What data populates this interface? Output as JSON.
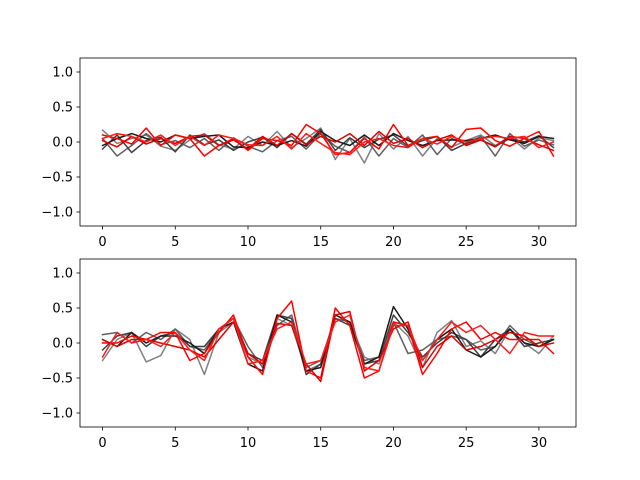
{
  "chart_data": [
    {
      "type": "line",
      "title": "",
      "xlabel": "",
      "ylabel": "",
      "xlim": [
        -1.55,
        32.55
      ],
      "ylim": [
        -1.2,
        1.2
      ],
      "x_ticks": [
        0,
        5,
        10,
        15,
        20,
        25,
        30
      ],
      "x_tick_labels": [
        "0",
        "5",
        "10",
        "15",
        "20",
        "25",
        "30"
      ],
      "y_ticks": [
        -1.0,
        -0.5,
        0.0,
        0.5,
        1.0
      ],
      "y_tick_labels": [
        "−1.0",
        "−0.5",
        "0.0",
        "0.5",
        "1.0"
      ],
      "grid": false,
      "legend": "none",
      "x": [
        0,
        1,
        2,
        3,
        4,
        5,
        6,
        7,
        8,
        9,
        10,
        11,
        12,
        13,
        14,
        15,
        16,
        17,
        18,
        19,
        20,
        21,
        22,
        23,
        24,
        25,
        26,
        27,
        28,
        29,
        30,
        31
      ],
      "series": [
        {
          "color": "#808080",
          "values": [
            0.17,
            -0.02,
            0.05,
            0.1,
            -0.06,
            -0.12,
            0.03,
            0.12,
            -0.04,
            -0.1,
            0.08,
            -0.05,
            0.15,
            -0.08,
            0.05,
            0.2,
            -0.25,
            0.05,
            -0.3,
            0.12,
            -0.1,
            0.08,
            -0.2,
            0.05,
            -0.07,
            0.02,
            0.1,
            -0.05,
            0.08,
            -0.1,
            0.06,
            0.02
          ]
        },
        {
          "color": "#606060",
          "values": [
            0.05,
            -0.2,
            -0.05,
            0.12,
            -0.04,
            0.02,
            -0.08,
            0.05,
            -0.12,
            0.06,
            -0.06,
            -0.14,
            0.02,
            0.08,
            -0.1,
            0.12,
            -0.06,
            -0.15,
            0.07,
            -0.2,
            0.05,
            -0.08,
            0.1,
            -0.18,
            0.05,
            -0.03,
            0.08,
            -0.2,
            0.12,
            -0.06,
            0.03,
            -0.04
          ]
        },
        {
          "color": "#404040",
          "values": [
            -0.1,
            0.1,
            -0.15,
            0.02,
            0.07,
            -0.14,
            0.1,
            -0.04,
            0.03,
            -0.12,
            0.0,
            0.07,
            -0.08,
            0.12,
            -0.03,
            0.18,
            -0.12,
            0.06,
            -0.08,
            0.04,
            0.1,
            -0.06,
            0.02,
            0.08,
            -0.12,
            -0.02,
            0.03,
            -0.06,
            0.05,
            0.0,
            0.09,
            -0.08
          ]
        },
        {
          "color": "#1a1a1a",
          "values": [
            -0.05,
            0.05,
            0.12,
            0.05,
            0.0,
            0.1,
            0.05,
            0.08,
            0.1,
            -0.07,
            -0.08,
            0.0,
            -0.05,
            0.02,
            -0.06,
            0.15,
            0.02,
            -0.05,
            0.1,
            -0.05,
            0.12,
            0.02,
            -0.05,
            0.02,
            0.03,
            0.02,
            0.05,
            0.1,
            0.03,
            -0.02,
            0.08,
            0.05
          ]
        },
        {
          "color": "#ff0000",
          "values": [
            0.1,
            0.05,
            -0.03,
            0.2,
            -0.05,
            0.1,
            0.05,
            -0.2,
            -0.05,
            0.05,
            -0.12,
            0.05,
            0.02,
            -0.05,
            0.25,
            0.12,
            -0.18,
            -0.15,
            0.05,
            -0.1,
            0.25,
            -0.05,
            0.05,
            0.08,
            -0.08,
            0.18,
            0.2,
            0.02,
            -0.06,
            0.05,
            0.15,
            -0.2
          ]
        },
        {
          "color": "#e00000",
          "values": [
            0.02,
            -0.07,
            0.08,
            -0.03,
            0.05,
            -0.02,
            0.08,
            0.1,
            -0.05,
            0.03,
            -0.1,
            0.08,
            -0.05,
            0.12,
            -0.04,
            0.08,
            0.0,
            0.12,
            -0.05,
            0.15,
            -0.02,
            0.05,
            -0.08,
            0.03,
            0.1,
            -0.05,
            0.03,
            -0.07,
            0.08,
            0.05,
            -0.04,
            -0.12
          ]
        },
        {
          "color": "#ff1a1a",
          "values": [
            0.05,
            0.12,
            0.08,
            0.0,
            0.1,
            -0.05,
            0.08,
            -0.05,
            0.1,
            0.05,
            -0.04,
            -0.05,
            0.08,
            -0.1,
            0.12,
            -0.02,
            -0.15,
            -0.18,
            0.0,
            0.05,
            -0.05,
            -0.08,
            0.05,
            -0.03,
            0.08,
            0.0,
            0.05,
            0.08,
            0.05,
            0.08,
            -0.08,
            0.0
          ]
        }
      ]
    },
    {
      "type": "line",
      "title": "",
      "xlabel": "",
      "ylabel": "",
      "xlim": [
        -1.55,
        32.55
      ],
      "ylim": [
        -1.2,
        1.2
      ],
      "x_ticks": [
        0,
        5,
        10,
        15,
        20,
        25,
        30
      ],
      "x_tick_labels": [
        "0",
        "5",
        "10",
        "15",
        "20",
        "25",
        "30"
      ],
      "y_ticks": [
        -1.0,
        -0.5,
        0.0,
        0.5,
        1.0
      ],
      "y_tick_labels": [
        "−1.0",
        "−0.5",
        "0.0",
        "0.5",
        "1.0"
      ],
      "grid": false,
      "legend": "none",
      "x": [
        0,
        1,
        2,
        3,
        4,
        5,
        6,
        7,
        8,
        9,
        10,
        11,
        12,
        13,
        14,
        15,
        16,
        17,
        18,
        19,
        20,
        21,
        22,
        23,
        24,
        25,
        26,
        27,
        28,
        29,
        30,
        31
      ],
      "series": [
        {
          "color": "#808080",
          "values": [
            -0.25,
            0.05,
            0.15,
            -0.27,
            -0.18,
            0.2,
            0.05,
            -0.45,
            0.15,
            0.3,
            -0.2,
            -0.3,
            0.35,
            0.25,
            -0.4,
            -0.3,
            0.4,
            0.3,
            -0.2,
            -0.3,
            0.3,
            0.1,
            -0.35,
            0.15,
            0.32,
            -0.05,
            0.03,
            -0.15,
            0.2,
            0.0,
            -0.15,
            0.1
          ]
        },
        {
          "color": "#606060",
          "values": [
            0.12,
            0.15,
            0.0,
            0.15,
            0.05,
            0.2,
            -0.05,
            -0.1,
            0.2,
            0.35,
            -0.05,
            -0.35,
            0.25,
            0.4,
            -0.35,
            -0.25,
            0.35,
            0.3,
            -0.25,
            -0.2,
            0.3,
            -0.15,
            -0.1,
            0.05,
            0.1,
            0.05,
            -0.1,
            -0.05,
            0.25,
            0.05,
            -0.05,
            0.05
          ]
        },
        {
          "color": "#404040",
          "values": [
            -0.1,
            0.1,
            0.15,
            -0.05,
            0.1,
            0.15,
            -0.05,
            -0.05,
            0.2,
            0.35,
            -0.15,
            -0.25,
            0.4,
            0.35,
            -0.45,
            -0.3,
            0.35,
            0.25,
            -0.3,
            -0.25,
            0.4,
            0.15,
            -0.2,
            0.0,
            0.15,
            0.05,
            -0.2,
            0.05,
            0.2,
            -0.05,
            0.0,
            0.05
          ]
        },
        {
          "color": "#1a1a1a",
          "values": [
            0.05,
            -0.05,
            0.15,
            0.0,
            0.1,
            0.1,
            0.0,
            -0.15,
            0.2,
            0.3,
            -0.3,
            -0.4,
            0.4,
            0.3,
            -0.4,
            -0.35,
            0.4,
            0.3,
            -0.3,
            -0.2,
            0.52,
            0.2,
            -0.25,
            0.05,
            0.2,
            -0.1,
            -0.2,
            -0.05,
            0.2,
            0.0,
            -0.05,
            0.05
          ]
        },
        {
          "color": "#ff0000",
          "values": [
            0.0,
            0.0,
            0.1,
            0.05,
            0.15,
            0.15,
            -0.25,
            -0.15,
            0.15,
            0.4,
            -0.2,
            -0.45,
            0.35,
            0.6,
            -0.4,
            -0.5,
            0.5,
            0.25,
            -0.5,
            -0.4,
            0.3,
            0.25,
            -0.45,
            -0.15,
            0.2,
            0.3,
            0.05,
            0.15,
            0.05,
            0.05,
            0.05,
            -0.15
          ]
        },
        {
          "color": "#e00000",
          "values": [
            0.05,
            -0.05,
            0.05,
            0.05,
            0.0,
            -0.05,
            -0.1,
            -0.2,
            0.05,
            0.3,
            -0.15,
            -0.3,
            0.28,
            0.25,
            -0.3,
            -0.55,
            0.4,
            0.45,
            -0.4,
            -0.25,
            0.2,
            0.3,
            -0.35,
            -0.05,
            0.1,
            -0.1,
            -0.05,
            0.05,
            0.15,
            0.1,
            -0.05,
            0.0
          ]
        },
        {
          "color": "#ff1a1a",
          "values": [
            -0.2,
            0.15,
            0.0,
            0.05,
            -0.05,
            0.15,
            -0.1,
            -0.25,
            0.2,
            0.35,
            -0.3,
            -0.25,
            0.2,
            0.3,
            -0.3,
            -0.25,
            0.3,
            0.4,
            -0.35,
            -0.4,
            0.25,
            0.25,
            -0.25,
            0.05,
            0.3,
            0.15,
            0.25,
            0.05,
            -0.15,
            0.15,
            0.1,
            0.1
          ]
        }
      ]
    }
  ]
}
